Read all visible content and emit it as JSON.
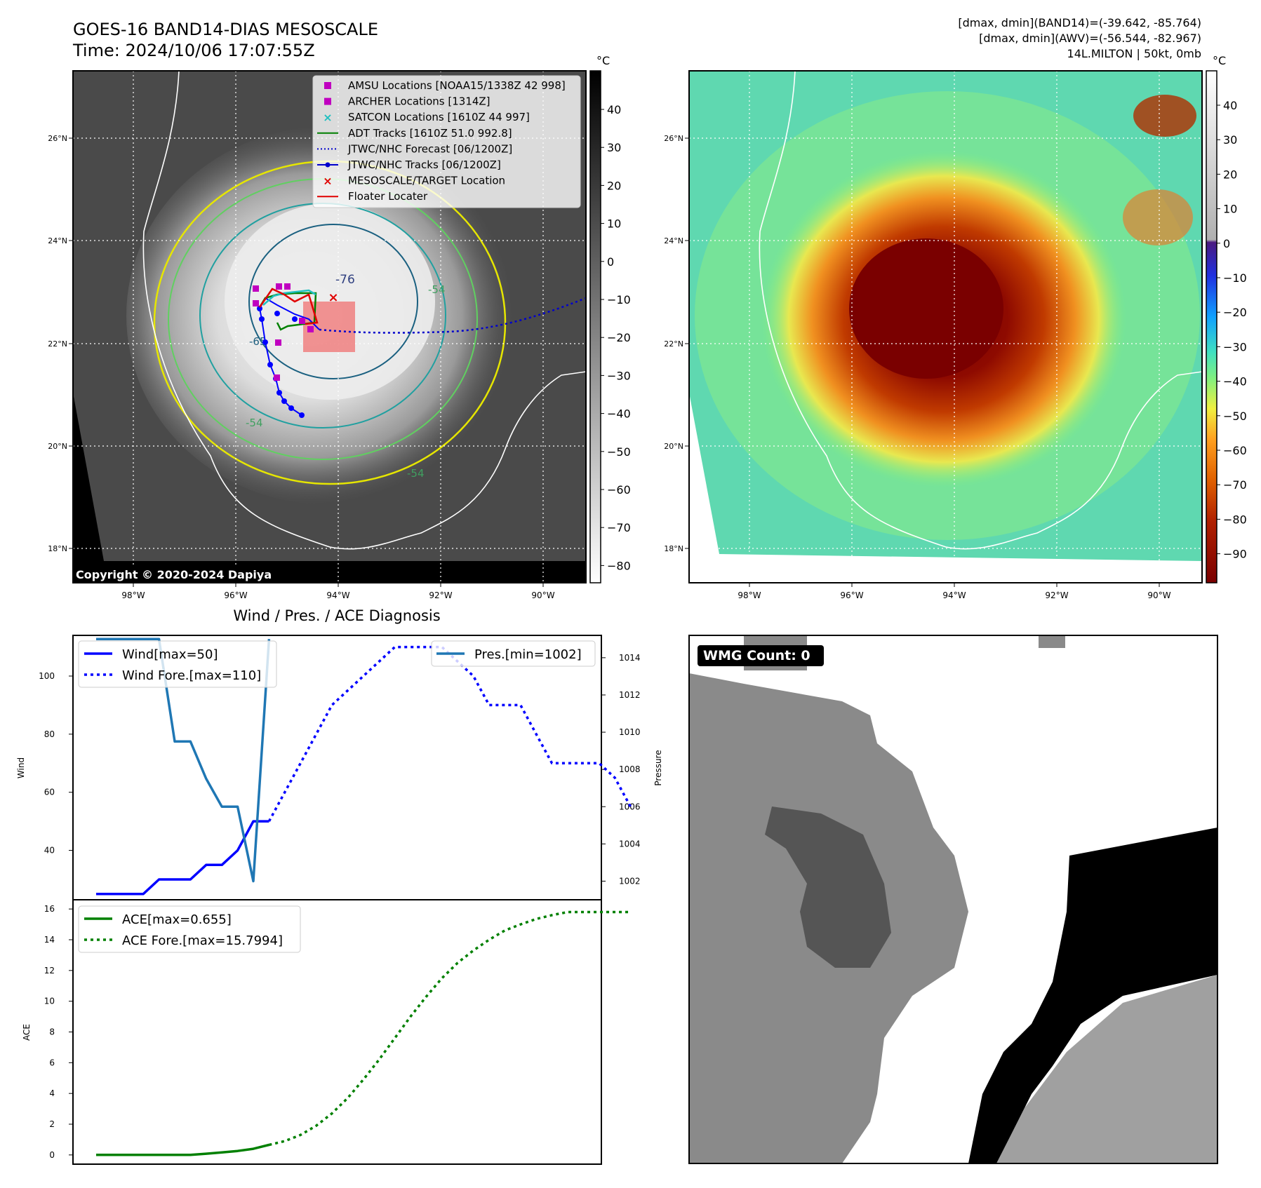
{
  "header": {
    "title": "GOES-16 BAND14-DIAS MESOSCALE",
    "time": "Time: 2024/10/06 17:07:55Z",
    "stat_band14": "[dmax, dmin](BAND14)=(-39.642, -85.764)",
    "stat_awv": "[dmax, dmin](AWV)=(-56.544, -82.967)",
    "storm_info": "14L.MILTON | 50kt, 0mb"
  },
  "map": {
    "lat_ticks": [
      "26°N",
      "24°N",
      "22°N",
      "20°N",
      "18°N"
    ],
    "lon_ticks": [
      "98°W",
      "96°W",
      "94°W",
      "92°W",
      "90°W"
    ],
    "contour_labels": [
      "-76",
      "-54",
      "-54",
      "-65",
      "-54"
    ],
    "copyright": "Copyright © 2020-2024 Dapiya"
  },
  "colorbar_gray": {
    "unit": "°C",
    "ticks": [
      "40",
      "30",
      "20",
      "10",
      "0",
      "−10",
      "−20",
      "−30",
      "−40",
      "−50",
      "−60",
      "−70",
      "−80"
    ]
  },
  "colorbar_color": {
    "unit": "°C",
    "ticks": [
      "40",
      "30",
      "20",
      "10",
      "0",
      "−10",
      "−20",
      "−30",
      "−40",
      "−50",
      "−60",
      "−70",
      "−80",
      "−90"
    ]
  },
  "legend": {
    "items": [
      {
        "label": "AMSU Locations [NOAA15/1338Z 42 998]",
        "color": "#c000c0",
        "kind": "square"
      },
      {
        "label": "ARCHER Locations [1314Z]",
        "color": "#c000c0",
        "kind": "square"
      },
      {
        "label": "SATCON Locations [1610Z 44 997]",
        "color": "#20c0c0",
        "kind": "x"
      },
      {
        "label": "ADT Tracks [1610Z 51.0 992.8]",
        "color": "#008000",
        "kind": "line"
      },
      {
        "label": "JTWC/NHC Forecast [06/1200Z]",
        "color": "#0000cc",
        "kind": "dotted"
      },
      {
        "label": "JTWC/NHC Tracks [06/1200Z]",
        "color": "#0000cc",
        "kind": "dotline"
      },
      {
        "label": "MESOSCALE/TARGET Location",
        "color": "#e00000",
        "kind": "x"
      },
      {
        "label": "Floater Locater",
        "color": "#e00000",
        "kind": "line"
      }
    ]
  },
  "diagnosis": {
    "title": "Wind / Pres. / ACE Diagnosis",
    "wind_axis_label": "Wind",
    "pressure_axis_label": "Pressure",
    "ace_axis_label": "ACE",
    "legend_wind": "Wind[max=50]",
    "legend_wind_fore": "Wind Fore.[max=110]",
    "legend_pres": "Pres.[min=1002]",
    "legend_ace": "ACE[max=0.655]",
    "legend_ace_fore": "ACE Fore.[max=15.7994]"
  },
  "wmg": {
    "count_label": "WMG Count: 0"
  },
  "chart_data": [
    {
      "type": "line",
      "title": "Wind / Pres. / ACE Diagnosis",
      "ylabel": "Wind",
      "ylim": [
        23,
        114
      ],
      "yticks": [
        40,
        60,
        80,
        100
      ],
      "series": [
        {
          "name": "Wind[max=50]",
          "color": "#0000ff",
          "style": "solid",
          "x": [
            0,
            1,
            2,
            3,
            4,
            5,
            6,
            7,
            8,
            9,
            10,
            11
          ],
          "values": [
            25,
            25,
            25,
            25,
            30,
            30,
            30,
            35,
            35,
            40,
            50,
            50
          ]
        },
        {
          "name": "Wind Fore.[max=110]",
          "color": "#0000ff",
          "style": "dotted",
          "x": [
            11,
            12,
            13,
            14,
            15,
            16,
            17,
            18,
            19,
            20,
            21,
            22,
            23,
            24,
            25,
            26,
            27,
            28,
            29,
            30,
            31,
            32,
            33,
            34
          ],
          "values": [
            50,
            60,
            70,
            80,
            90,
            95,
            100,
            105,
            110,
            110,
            110,
            110,
            105,
            100,
            90,
            90,
            90,
            80,
            70,
            70,
            70,
            70,
            65,
            55
          ]
        }
      ]
    },
    {
      "type": "line",
      "ylabel": "Pressure",
      "ylim": [
        1001.0,
        1015.2
      ],
      "yticks": [
        1002,
        1004,
        1006,
        1008,
        1010,
        1012,
        1014
      ],
      "series": [
        {
          "name": "Pres.[min=1002]",
          "color": "#1f77b4",
          "style": "solid",
          "x": [
            0,
            1,
            2,
            3,
            4,
            5,
            6,
            7,
            8,
            9,
            10,
            11
          ],
          "values": [
            1015,
            1015,
            1015,
            1015,
            1015,
            1009.5,
            1009.5,
            1007.5,
            1006,
            1006,
            1002,
            1015
          ]
        }
      ]
    },
    {
      "type": "line",
      "ylabel": "ACE",
      "ylim": [
        -0.6,
        16.6
      ],
      "yticks": [
        0,
        2,
        4,
        6,
        8,
        10,
        12,
        14,
        16
      ],
      "series": [
        {
          "name": "ACE[max=0.655]",
          "color": "#008000",
          "style": "solid",
          "x": [
            0,
            1,
            2,
            3,
            4,
            5,
            6,
            7,
            8,
            9,
            10,
            11
          ],
          "values": [
            0,
            0,
            0,
            0,
            0,
            0,
            0,
            0.08,
            0.16,
            0.26,
            0.4,
            0.655
          ]
        },
        {
          "name": "ACE Fore.[max=15.7994]",
          "color": "#008000",
          "style": "dotted",
          "x": [
            11,
            12,
            13,
            14,
            15,
            16,
            17,
            18,
            19,
            20,
            21,
            22,
            23,
            24,
            25,
            26,
            27,
            28,
            29,
            30,
            31,
            32,
            33,
            34
          ],
          "values": [
            0.655,
            0.9,
            1.3,
            1.9,
            2.7,
            3.7,
            4.9,
            6.2,
            7.6,
            9.0,
            10.3,
            11.5,
            12.5,
            13.3,
            14.0,
            14.6,
            15.0,
            15.35,
            15.6,
            15.8,
            15.7994,
            15.7994,
            15.7994,
            15.7994
          ]
        }
      ]
    }
  ]
}
